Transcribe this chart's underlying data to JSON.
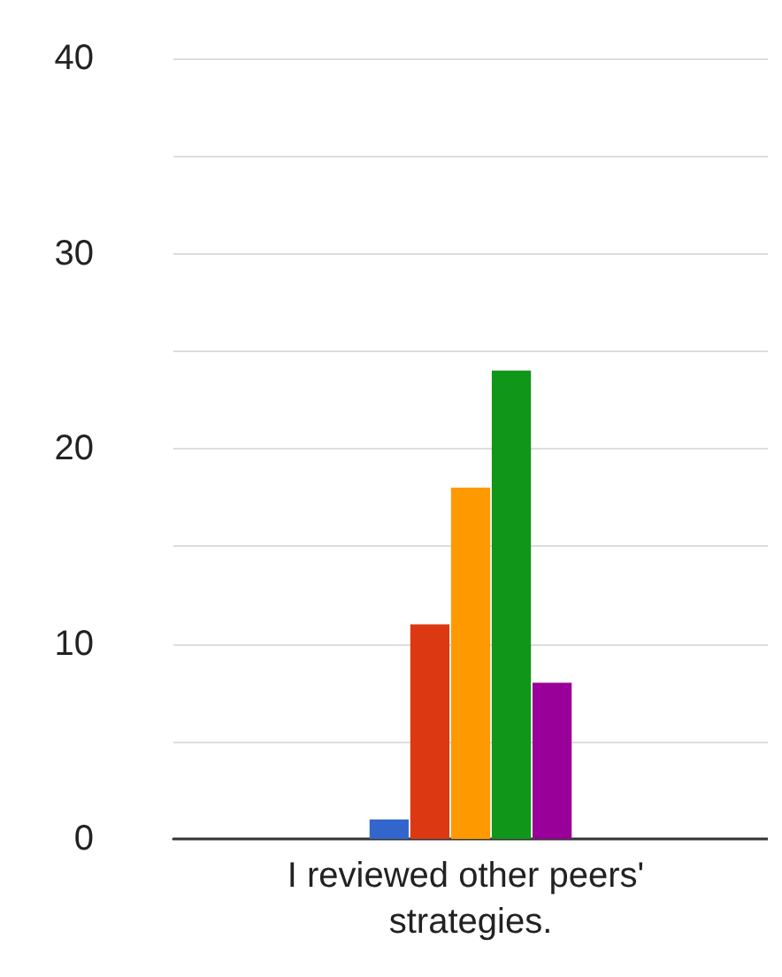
{
  "chart_data": {
    "type": "bar",
    "categories": [
      "I reviewed other peers' strategies."
    ],
    "series": [
      {
        "color": "#3366cc",
        "values": [
          1
        ]
      },
      {
        "color": "#dc3912",
        "values": [
          11
        ]
      },
      {
        "color": "#ff9900",
        "values": [
          18
        ]
      },
      {
        "color": "#109618",
        "values": [
          24
        ]
      },
      {
        "color": "#990099",
        "values": [
          8
        ]
      }
    ],
    "ylim": [
      0,
      40
    ],
    "yticks": [
      0,
      {
        "value": 5,
        "label": null
      },
      10,
      {
        "value": 15,
        "label": null
      },
      20,
      {
        "value": 25,
        "label": null
      },
      30,
      {
        "value": 35,
        "label": null
      },
      40
    ],
    "grid": "y"
  }
}
